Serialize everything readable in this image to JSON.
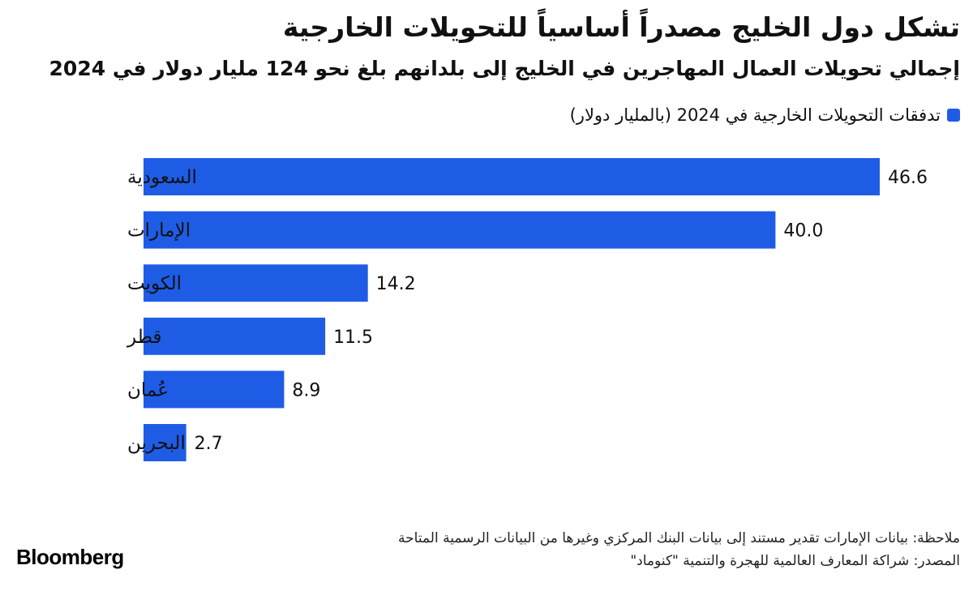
{
  "header": {
    "title": "تشكل دول الخليج مصدراً أساسياً للتحويلات الخارجية",
    "subtitle": "إجمالي تحويلات العمال المهاجرين في الخليج إلى بلدانهم بلغ نحو 124 مليار دولار في 2024"
  },
  "legend": {
    "label": "تدفقات التحويلات الخارجية في 2024 (بالمليار دولار)",
    "color": "#1f5ce6"
  },
  "footer": {
    "note": "ملاحظة: بيانات الإمارات تقدير مستند إلى بيانات البنك المركزي وغيرها من البيانات الرسمية المتاحة",
    "source": "المصدر: شراكة المعارف العالمية للهجرة والتنمية \"كنوماد\"",
    "brand": "Bloomberg"
  },
  "chart_data": {
    "type": "bar",
    "orientation": "horizontal",
    "categories": [
      "السعودية",
      "الإمارات",
      "الكويت",
      "قطر",
      "عُمان",
      "البحرين"
    ],
    "values": [
      46.6,
      40.0,
      14.2,
      11.5,
      8.9,
      2.7
    ],
    "value_labels": [
      "46.6",
      "40.0",
      "14.2",
      "11.5",
      "8.9",
      "2.7"
    ],
    "series": [
      {
        "name": "تدفقات التحويلات الخارجية في 2024 (بالمليار دولار)",
        "values": [
          46.6,
          40.0,
          14.2,
          11.5,
          8.9,
          2.7
        ]
      }
    ],
    "bar_color": "#1f5ce6",
    "xlim": [
      0,
      46.6
    ],
    "grid": false,
    "legend_position": "top-right"
  }
}
